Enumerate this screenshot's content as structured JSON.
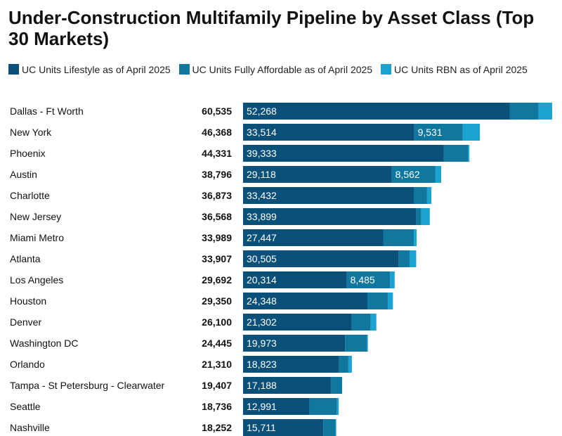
{
  "chart_data": {
    "type": "bar",
    "orientation": "horizontal",
    "stacked": true,
    "title": "Under-Construction Multifamily Pipeline by Asset Class (Top 30 Markets)",
    "legend_position": "top",
    "categories": [
      "Dallas - Ft Worth",
      "New York",
      "Phoenix",
      "Austin",
      "Charlotte",
      "New Jersey",
      "Miami Metro",
      "Atlanta",
      "Los Angeles",
      "Houston",
      "Denver",
      "Washington DC",
      "Orlando",
      "Tampa - St Petersburg - Clearwater",
      "Seattle",
      "Nashville"
    ],
    "totals": [
      "60,535",
      "46,368",
      "44,331",
      "38,796",
      "36,873",
      "36,568",
      "33,989",
      "33,907",
      "29,692",
      "29,350",
      "26,100",
      "24,445",
      "21,310",
      "19,407",
      "18,736",
      "18,252"
    ],
    "series": [
      {
        "name": "UC Units Lifestyle as of April 2025",
        "color": "#0b5078",
        "values": [
          52268,
          33514,
          39333,
          29118,
          33432,
          33899,
          27447,
          30505,
          20314,
          24348,
          21302,
          19973,
          18823,
          17188,
          12991,
          15711
        ],
        "labels": [
          "52,268",
          "33,514",
          "39,333",
          "29,118",
          "33,432",
          "33,899",
          "27,447",
          "30,505",
          "20,314",
          "24,348",
          "21,302",
          "19,973",
          "18,823",
          "17,188",
          "12,991",
          "15,711"
        ]
      },
      {
        "name": "UC Units Fully Affordable as of April 2025",
        "color": "#10779f",
        "values": [
          5600,
          9531,
          4700,
          8562,
          2600,
          1000,
          6000,
          2100,
          8485,
          4000,
          3700,
          4300,
          1800,
          2200,
          5400,
          2400
        ],
        "labels": [
          "",
          "9,531",
          "",
          "8,562",
          "",
          "",
          "",
          "",
          "8,485",
          "",
          "",
          "",
          "",
          "",
          "",
          ""
        ]
      },
      {
        "name": "UC Units RBN as of April",
        "color": "#1ca2d0",
        "values": [
          2667,
          3323,
          298,
          1116,
          841,
          1669,
          542,
          1302,
          893,
          1002,
          1098,
          172,
          687,
          19,
          345,
          141
        ],
        "labels": [
          "",
          "",
          "",
          "",
          "",
          "",
          "",
          "",
          "",
          "",
          "",
          "",
          "",
          "",
          "",
          ""
        ]
      }
    ],
    "xlim": [
      0,
      60535
    ]
  },
  "legend": {
    "items": [
      {
        "label": "UC Units Lifestyle as of April 2025",
        "color": "#0b5078"
      },
      {
        "label": "UC Units Fully Affordable as of April 2025",
        "color": "#10779f"
      },
      {
        "label": "UC Units RBN as of April 2025",
        "color": "#1ca2d0"
      }
    ]
  }
}
